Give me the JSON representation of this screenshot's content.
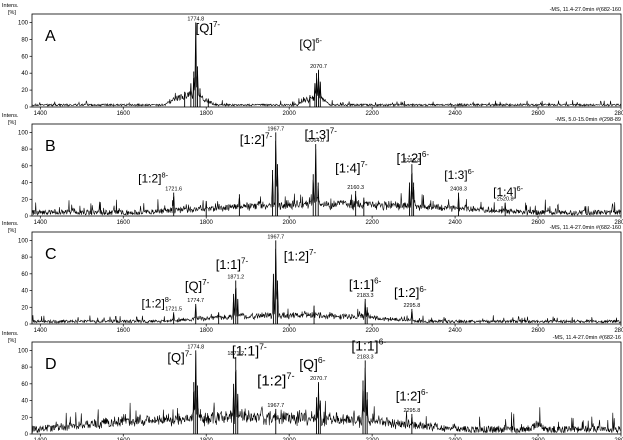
{
  "chart_data": [
    {
      "type": "line",
      "panel_label": "A",
      "y_axis_title": [
        "Intens.",
        "[%]"
      ],
      "header": "-MS, 11.4-27.0min #(682-160",
      "xlim": [
        1380,
        2800
      ],
      "ylim": [
        0,
        110
      ],
      "x_ticks": [
        1400,
        1600,
        1800,
        2000,
        2200,
        2400,
        2600,
        2800
      ],
      "x_tick_labels": [
        "1400",
        "1600",
        "1800",
        "2000",
        "2200",
        "2400",
        "2600",
        "2800"
      ],
      "y_ticks": [
        0,
        20,
        40,
        60,
        80,
        100
      ],
      "y_tick_labels": [
        "0",
        "20",
        "40",
        "60",
        "80",
        "100"
      ],
      "noise_level": 4,
      "envelopes": [
        [
          1700,
          1820,
          12
        ],
        [
          2020,
          2100,
          8
        ]
      ],
      "peaks": [
        {
          "x": 1763,
          "y": 28
        },
        {
          "x": 1770,
          "y": 42
        },
        {
          "x": 1774.8,
          "y": 100
        },
        {
          "x": 1779,
          "y": 48
        },
        {
          "x": 1785,
          "y": 22
        },
        {
          "x": 1748,
          "y": 18
        },
        {
          "x": 1805,
          "y": 10
        },
        {
          "x": 2062,
          "y": 28
        },
        {
          "x": 2066,
          "y": 40
        },
        {
          "x": 2070.7,
          "y": 44
        },
        {
          "x": 2075,
          "y": 30
        },
        {
          "x": 2050,
          "y": 14
        }
      ],
      "annotations": [
        {
          "x": 1774.8,
          "y": 100,
          "mz": "1774.8",
          "ion": "[Q]",
          "charge": "7-",
          "ion_x": 1804,
          "ion_y": 88,
          "size": 13
        },
        {
          "x": 2070.7,
          "y": 44,
          "mz": "2070.7",
          "ion": "[Q]",
          "charge": "6-",
          "ion_x": 2052,
          "ion_y": 70,
          "size": 12
        }
      ]
    },
    {
      "type": "line",
      "panel_label": "B",
      "y_axis_title": [
        "Intens.",
        "[%]"
      ],
      "header": "-MS, 5.0-15.0min #(298-89",
      "xlim": [
        1380,
        2800
      ],
      "ylim": [
        0,
        110
      ],
      "x_ticks": [
        1400,
        1600,
        1800,
        2000,
        2200,
        2400,
        2600,
        2800
      ],
      "x_tick_labels": [
        "1400",
        "1600",
        "1800",
        "2000",
        "2200",
        "2400",
        "2600",
        "2800"
      ],
      "y_ticks": [
        0,
        20,
        40,
        60,
        80,
        100
      ],
      "y_tick_labels": [
        "0",
        "20",
        "40",
        "60",
        "80",
        "100"
      ],
      "noise_level": 10,
      "envelopes": [
        [
          1650,
          2560,
          10
        ]
      ],
      "peaks": [
        {
          "x": 1721.6,
          "y": 28
        },
        {
          "x": 1800,
          "y": 18
        },
        {
          "x": 1880,
          "y": 26
        },
        {
          "x": 1960,
          "y": 55
        },
        {
          "x": 1967.7,
          "y": 100
        },
        {
          "x": 1972,
          "y": 62
        },
        {
          "x": 2058,
          "y": 50
        },
        {
          "x": 2064.0,
          "y": 86
        },
        {
          "x": 2070,
          "y": 40
        },
        {
          "x": 2160.3,
          "y": 30
        },
        {
          "x": 2180,
          "y": 22
        },
        {
          "x": 2290,
          "y": 40
        },
        {
          "x": 2295.8,
          "y": 62
        },
        {
          "x": 2300,
          "y": 40
        },
        {
          "x": 2408.3,
          "y": 28
        },
        {
          "x": 2520.8,
          "y": 16
        }
      ],
      "annotations": [
        {
          "x": 1721.6,
          "y": 28,
          "mz": "1721.6",
          "ion": "[1:2]",
          "charge": "8-",
          "ion_x": 1672,
          "ion_y": 40,
          "size": 12
        },
        {
          "x": 1967.7,
          "y": 100,
          "mz": "1967.7",
          "ion": "[1:2]",
          "charge": "7-",
          "ion_x": 1920,
          "ion_y": 86,
          "size": 13
        },
        {
          "x": 2064.0,
          "y": 86,
          "mz": "2064.0",
          "ion": "[1:3]",
          "charge": "7-",
          "ion_x": 2076,
          "ion_y": 92,
          "size": 13
        },
        {
          "x": 2160.3,
          "y": 30,
          "mz": "2160.3",
          "ion": "[1:4]",
          "charge": "7-",
          "ion_x": 2150,
          "ion_y": 52,
          "size": 13
        },
        {
          "x": 2295.8,
          "y": 62,
          "mz": "2295.8",
          "ion": "[1:2]",
          "charge": "6-",
          "ion_x": 2298,
          "ion_y": 64,
          "size": 13
        },
        {
          "x": 2408.3,
          "y": 28,
          "mz": "2408.3",
          "ion": "[1:3]",
          "charge": "6-",
          "ion_x": 2410,
          "ion_y": 44,
          "size": 12
        },
        {
          "x": 2520.8,
          "y": 16,
          "mz": "2520.8",
          "ion": "[1:4]",
          "charge": "6-",
          "ion_x": 2528,
          "ion_y": 24,
          "size": 12
        }
      ]
    },
    {
      "type": "line",
      "panel_label": "C",
      "y_axis_title": [
        "Intens.",
        "[%]"
      ],
      "header": "-MS, 11.4-27.0min #(682-160",
      "xlim": [
        1380,
        2800
      ],
      "ylim": [
        0,
        110
      ],
      "x_ticks": [
        1400,
        1600,
        1800,
        2000,
        2200,
        2400,
        2600,
        2800
      ],
      "x_tick_labels": [
        "1400",
        "1600",
        "1800",
        "2000",
        "2200",
        "2400",
        "2600",
        "2800"
      ],
      "y_ticks": [
        0,
        20,
        40,
        60,
        80,
        100
      ],
      "y_tick_labels": [
        "0",
        "20",
        "40",
        "60",
        "80",
        "100"
      ],
      "noise_level": 6,
      "envelopes": [
        [
          1700,
          2320,
          8
        ]
      ],
      "peaks": [
        {
          "x": 1721.5,
          "y": 14
        },
        {
          "x": 1774.7,
          "y": 24
        },
        {
          "x": 1830,
          "y": 14
        },
        {
          "x": 1866,
          "y": 36
        },
        {
          "x": 1871.2,
          "y": 52
        },
        {
          "x": 1876,
          "y": 30
        },
        {
          "x": 1962,
          "y": 60
        },
        {
          "x": 1967.7,
          "y": 100
        },
        {
          "x": 1972,
          "y": 52
        },
        {
          "x": 2060,
          "y": 22
        },
        {
          "x": 2183.3,
          "y": 30
        },
        {
          "x": 2188,
          "y": 20
        },
        {
          "x": 2295.8,
          "y": 18
        }
      ],
      "annotations": [
        {
          "x": 1721.5,
          "y": 14,
          "mz": "1721.5",
          "ion": "[1:2]",
          "charge": "8-",
          "ion_x": 1680,
          "ion_y": 20,
          "size": 12
        },
        {
          "x": 1774.7,
          "y": 24,
          "mz": "1774.7",
          "ion": "[Q]",
          "charge": "7-",
          "ion_x": 1778,
          "ion_y": 40,
          "size": 13
        },
        {
          "x": 1871.2,
          "y": 52,
          "mz": "1871.2",
          "ion": "[1:1]",
          "charge": "7-",
          "ion_x": 1862,
          "ion_y": 66,
          "size": 13
        },
        {
          "x": 1967.7,
          "y": 100,
          "mz": "1967.7",
          "ion": "[1:2]",
          "charge": "7-",
          "ion_x": 2026,
          "ion_y": 76,
          "size": 13
        },
        {
          "x": 2183.3,
          "y": 30,
          "mz": "2183.3",
          "ion": "[1:1]",
          "charge": "6-",
          "ion_x": 2183,
          "ion_y": 42,
          "size": 13
        },
        {
          "x": 2295.8,
          "y": 18,
          "mz": "2295.8",
          "ion": "[1:2]",
          "charge": "6-",
          "ion_x": 2292,
          "ion_y": 32,
          "size": 13
        }
      ]
    },
    {
      "type": "line",
      "panel_label": "D",
      "y_axis_title": [
        "Intens.",
        "[%]"
      ],
      "header": "-MS, 11.4-27.0min #(682-16",
      "xlim": [
        1380,
        2800
      ],
      "ylim": [
        0,
        110
      ],
      "x_ticks": [
        1400,
        1600,
        1800,
        2000,
        2200,
        2400,
        2600,
        2800
      ],
      "x_tick_labels": [
        "1400",
        "1600",
        "1800",
        "2000",
        "2200",
        "2400",
        "2600",
        "2800"
      ],
      "y_ticks": [
        0,
        20,
        40,
        60,
        80,
        100
      ],
      "y_tick_labels": [
        "0",
        "20",
        "40",
        "60",
        "80",
        "100"
      ],
      "noise_level": 14,
      "envelopes": [
        [
          1400,
          2400,
          16
        ],
        [
          2580,
          2620,
          6
        ]
      ],
      "peaks": [
        {
          "x": 1770,
          "y": 62
        },
        {
          "x": 1774.8,
          "y": 100
        },
        {
          "x": 1779,
          "y": 58
        },
        {
          "x": 1866,
          "y": 60
        },
        {
          "x": 1871.2,
          "y": 92
        },
        {
          "x": 1876,
          "y": 48
        },
        {
          "x": 1967.7,
          "y": 30
        },
        {
          "x": 2066,
          "y": 44
        },
        {
          "x": 2070.7,
          "y": 62
        },
        {
          "x": 2075,
          "y": 40
        },
        {
          "x": 2178,
          "y": 64
        },
        {
          "x": 2183.3,
          "y": 88
        },
        {
          "x": 2188,
          "y": 50
        },
        {
          "x": 2295.8,
          "y": 24
        }
      ],
      "annotations": [
        {
          "x": 1774.8,
          "y": 100,
          "mz": "1774.8",
          "ion": "[Q]",
          "charge": "7-",
          "ion_x": 1736,
          "ion_y": 86,
          "size": 13
        },
        {
          "x": 1871.2,
          "y": 92,
          "mz": "1871.2",
          "ion": "[1:1]",
          "charge": "7-",
          "ion_x": 1904,
          "ion_y": 94,
          "size": 14
        },
        {
          "x": 1967.7,
          "y": 30,
          "mz": "1967.7",
          "ion": "[1:2]",
          "charge": "7-",
          "ion_x": 1968,
          "ion_y": 58,
          "size": 15
        },
        {
          "x": 2070.7,
          "y": 62,
          "mz": "2070.7",
          "ion": "[Q]",
          "charge": "6-",
          "ion_x": 2056,
          "ion_y": 78,
          "size": 14
        },
        {
          "x": 2183.3,
          "y": 88,
          "mz": "2183.3",
          "ion": "[1:1]",
          "charge": "6-",
          "ion_x": 2192,
          "ion_y": 100,
          "size": 14
        },
        {
          "x": 2295.8,
          "y": 24,
          "mz": "2295.8",
          "ion": "[1:2]",
          "charge": "6-",
          "ion_x": 2296,
          "ion_y": 40,
          "size": 13
        }
      ]
    }
  ]
}
